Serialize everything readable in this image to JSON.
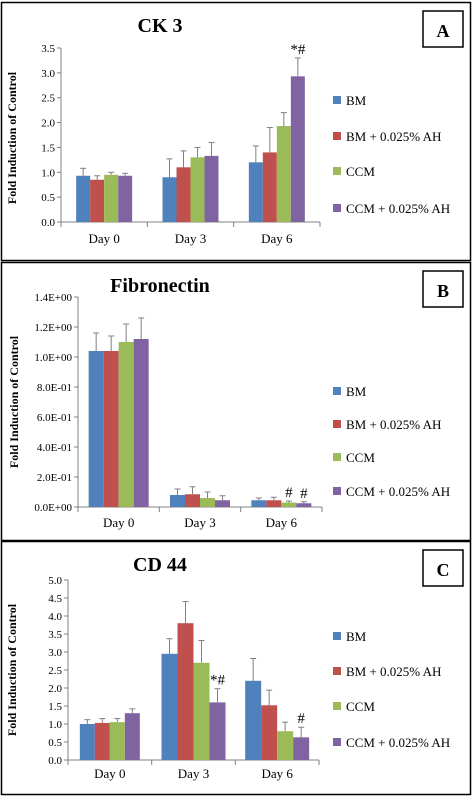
{
  "colors": {
    "BM": "#4F81BD",
    "BM + 0.025% AH": "#C0504D",
    "CCM": "#9BBB59",
    "CCM + 0.025% AH": "#8064A2",
    "error_bar": "#808080",
    "axis": "#808080",
    "border": "#000000"
  },
  "chart_data": [
    {
      "type": "bar",
      "panel_label": "A",
      "title": "CK 3",
      "ylabel": "Fold Induction of Control",
      "xlabel": "",
      "categories": [
        "Day 0",
        "Day 3",
        "Day 6"
      ],
      "ylim": [
        0,
        3.5
      ],
      "yticks": [
        0,
        0.5,
        1.0,
        1.5,
        2.0,
        2.5,
        3.0,
        3.5
      ],
      "ytick_labels": [
        "0.0",
        "0.5",
        "1.0",
        "1.5",
        "2.0",
        "2.5",
        "3.0",
        "3.5"
      ],
      "grid": false,
      "legend_position": "right",
      "series": [
        {
          "name": "BM",
          "values": [
            0.93,
            0.9,
            1.2
          ],
          "errors": [
            0.15,
            0.37,
            0.33
          ]
        },
        {
          "name": "BM + 0.025% AH",
          "values": [
            0.85,
            1.1,
            1.4
          ],
          "errors": [
            0.08,
            0.33,
            0.5
          ]
        },
        {
          "name": "CCM",
          "values": [
            0.95,
            1.3,
            1.93
          ],
          "errors": [
            0.05,
            0.2,
            0.27
          ]
        },
        {
          "name": "CCM + 0.025% AH",
          "values": [
            0.93,
            1.33,
            2.93
          ],
          "errors": [
            0.05,
            0.27,
            0.37
          ]
        }
      ],
      "annotations": [
        {
          "category": "Day 6",
          "series": "CCM + 0.025% AH",
          "text": "*#"
        }
      ]
    },
    {
      "type": "bar",
      "panel_label": "B",
      "title": "Fibronectin",
      "ylabel": "Fold Induction of Control",
      "xlabel": "",
      "categories": [
        "Day 0",
        "Day 3",
        "Day 6"
      ],
      "ylim": [
        0,
        1.4
      ],
      "yticks": [
        0,
        0.2,
        0.4,
        0.6,
        0.8,
        1.0,
        1.2,
        1.4
      ],
      "ytick_labels": [
        "0.0E+00",
        "2.0E-01",
        "4.0E-01",
        "6.0E-01",
        "8.0E-01",
        "1.0E+00",
        "1.2E+00",
        "1.4E+00"
      ],
      "grid": false,
      "legend_position": "right",
      "series": [
        {
          "name": "BM",
          "values": [
            1.04,
            0.08,
            0.045
          ],
          "errors": [
            0.12,
            0.04,
            0.015
          ]
        },
        {
          "name": "BM + 0.025% AH",
          "values": [
            1.04,
            0.085,
            0.045
          ],
          "errors": [
            0.1,
            0.05,
            0.02
          ]
        },
        {
          "name": "CCM",
          "values": [
            1.1,
            0.06,
            0.03
          ],
          "errors": [
            0.12,
            0.04,
            0.01
          ]
        },
        {
          "name": "CCM + 0.025% AH",
          "values": [
            1.12,
            0.045,
            0.025
          ],
          "errors": [
            0.14,
            0.03,
            0.01
          ]
        }
      ],
      "annotations": [
        {
          "category": "Day 6",
          "series": "CCM",
          "text": "#"
        },
        {
          "category": "Day 6",
          "series": "CCM + 0.025% AH",
          "text": "#"
        }
      ]
    },
    {
      "type": "bar",
      "panel_label": "C",
      "title": "CD 44",
      "ylabel": "Fold Induction of Control",
      "xlabel": "",
      "categories": [
        "Day 0",
        "Day 3",
        "Day 6"
      ],
      "ylim": [
        0,
        5.0
      ],
      "yticks": [
        0,
        0.5,
        1.0,
        1.5,
        2.0,
        2.5,
        3.0,
        3.5,
        4.0,
        4.5,
        5.0
      ],
      "ytick_labels": [
        "0.0",
        "0.5",
        "1.0",
        "1.5",
        "2.0",
        "2.5",
        "3.0",
        "3.5",
        "4.0",
        "4.5",
        "5.0"
      ],
      "grid": false,
      "legend_position": "right",
      "series": [
        {
          "name": "BM",
          "values": [
            1.0,
            2.95,
            2.2
          ],
          "errors": [
            0.12,
            0.42,
            0.62
          ]
        },
        {
          "name": "BM + 0.025% AH",
          "values": [
            1.03,
            3.8,
            1.52
          ],
          "errors": [
            0.12,
            0.6,
            0.42
          ]
        },
        {
          "name": "CCM",
          "values": [
            1.05,
            2.7,
            0.8
          ],
          "errors": [
            0.1,
            0.62,
            0.25
          ]
        },
        {
          "name": "CCM + 0.025% AH",
          "values": [
            1.3,
            1.6,
            0.63
          ],
          "errors": [
            0.12,
            0.38,
            0.28
          ]
        }
      ],
      "annotations": [
        {
          "category": "Day 3",
          "series": "CCM + 0.025% AH",
          "text": "*#"
        },
        {
          "category": "Day 6",
          "series": "CCM + 0.025% AH",
          "text": "#"
        }
      ]
    }
  ]
}
